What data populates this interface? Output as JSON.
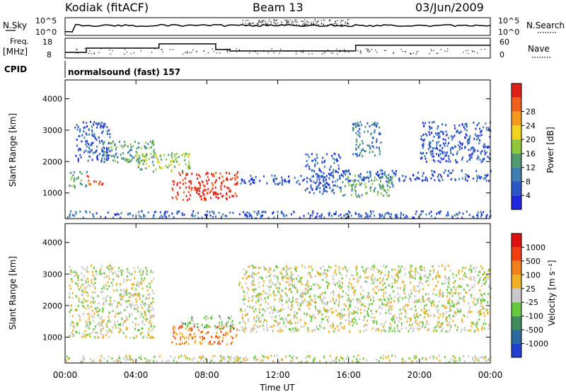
{
  "header": {
    "station": "Kodiak (fitACF)",
    "beam": "Beam 13",
    "date": "03/Jun/2009"
  },
  "top_panel": {
    "left_label": "N.Sky",
    "right_label": "N.Search",
    "left_ticks": [
      "10^5",
      "10^0"
    ],
    "right_ticks": [
      "10^5",
      "10^0"
    ]
  },
  "freq_panel": {
    "left_label_1": "Freq.",
    "left_label_2": "[MHz]",
    "right_label": "Nave",
    "left_ticks": [
      "18",
      "8"
    ],
    "right_ticks": [
      "60",
      "0"
    ]
  },
  "cpid": {
    "label": "CPID",
    "value": "normalsound (fast) 157"
  },
  "chart_data": [
    {
      "type": "heatmap",
      "title": "",
      "ylabel": "Slant Range [km]",
      "xlabel": "",
      "ylim": [
        180,
        4600
      ],
      "yticks": [
        1000,
        2000,
        3000,
        4000
      ],
      "x_hours": [
        0,
        24
      ],
      "colorbar": {
        "label": "Power [dB]",
        "ticks": [
          "4",
          "8",
          "12",
          "16",
          "20",
          "24",
          "28"
        ],
        "colors": [
          "#1f28e0",
          "#2a56c8",
          "#3c7fb0",
          "#4f9a6e",
          "#8fc83a",
          "#f2d41e",
          "#f59a1e",
          "#f0601a",
          "#e21f16"
        ]
      },
      "regions": [
        {
          "t0": 6.0,
          "t1": 9.7,
          "r0": 800,
          "r1": 1700,
          "level": 8
        },
        {
          "t0": 1.2,
          "t1": 2.1,
          "r0": 1300,
          "r1": 1600,
          "level": 7
        },
        {
          "t0": 0.2,
          "t1": 1.2,
          "r0": 1200,
          "r1": 1700,
          "level": 3
        },
        {
          "t0": 2.0,
          "t1": 5.0,
          "r0": 2000,
          "r1": 2700,
          "level": 3
        },
        {
          "t0": 4.0,
          "t1": 7.0,
          "r0": 1700,
          "r1": 2300,
          "level": 4
        },
        {
          "t0": 0.5,
          "t1": 2.5,
          "r0": 2000,
          "r1": 3300,
          "level": 1
        },
        {
          "t0": 9.8,
          "t1": 13.5,
          "r0": 1300,
          "r1": 1600,
          "level": 1
        },
        {
          "t0": 14.5,
          "t1": 24.0,
          "r0": 1400,
          "r1": 1750,
          "level": 1
        },
        {
          "t0": 15.5,
          "t1": 18.5,
          "r0": 900,
          "r1": 1600,
          "level": 3
        },
        {
          "t0": 16.2,
          "t1": 17.8,
          "r0": 2200,
          "r1": 3300,
          "level": 2
        },
        {
          "t0": 20.0,
          "t1": 24.0,
          "r0": 2000,
          "r1": 3300,
          "level": 1
        },
        {
          "t0": 13.5,
          "t1": 15.5,
          "r0": 1000,
          "r1": 2300,
          "level": 1
        },
        {
          "t0": 0.0,
          "t1": 24.0,
          "r0": 180,
          "r1": 450,
          "level": 1
        }
      ]
    },
    {
      "type": "heatmap",
      "title": "",
      "ylabel": "Slant Range [km]",
      "xlabel": "Time UT",
      "ylim": [
        180,
        4600
      ],
      "yticks": [
        1000,
        2000,
        3000,
        4000
      ],
      "x_hours": [
        0,
        24
      ],
      "xticks": [
        "00:00",
        "04:00",
        "08:00",
        "12:00",
        "16:00",
        "20:00",
        "00:00"
      ],
      "colorbar": {
        "label": "Velocity [m s⁻¹]",
        "ticks": [
          "1000",
          "500",
          "100",
          "25",
          "-25",
          "-100",
          "-500",
          "-1000"
        ],
        "colors": [
          "#1f40d0",
          "#2a6aa0",
          "#3f8a5a",
          "#66c83c",
          "#c8c8c8",
          "#f0b020",
          "#f08018",
          "#f04010",
          "#e01010"
        ]
      },
      "regions": [
        {
          "t0": 6.0,
          "t1": 9.7,
          "r0": 800,
          "r1": 1400,
          "level": 6
        },
        {
          "t0": 6.5,
          "t1": 9.5,
          "r0": 1300,
          "r1": 1700,
          "level": 3
        },
        {
          "t0": 0.2,
          "t1": 5.0,
          "r0": 1000,
          "r1": 3300,
          "level": 4
        },
        {
          "t0": 9.8,
          "t1": 24.0,
          "r0": 1200,
          "r1": 3300,
          "level": 4
        },
        {
          "t0": 0.0,
          "t1": 24.0,
          "r0": 180,
          "r1": 450,
          "level": 4
        }
      ]
    }
  ]
}
